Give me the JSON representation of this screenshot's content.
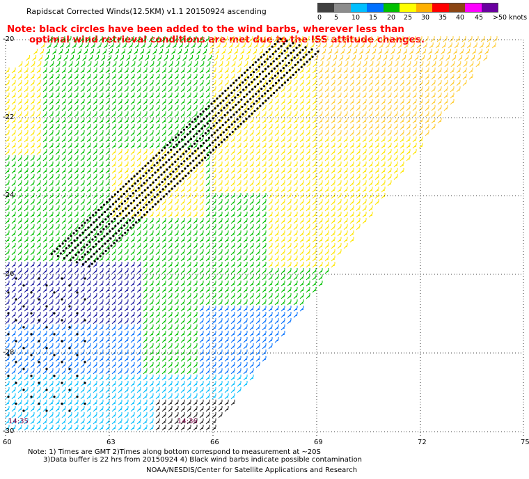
{
  "title": "Rapidscat Corrected Winds(12.5KM) v1.1 20150924 ascending",
  "note": {
    "line1": "Note: black circles have been added to the wind barbs, wherever less than",
    "line2": "optimal wind retrieval conditions are met due to the ISS attitude changes."
  },
  "legend": {
    "labels": [
      "0",
      "5",
      "10",
      "15",
      "20",
      "25",
      "30",
      "35",
      "40",
      "45",
      ">50 knots"
    ],
    "colors": [
      "#404040",
      "#8c8c8c",
      "#00bfff",
      "#0070ff",
      "#00c000",
      "#ffff00",
      "#ffb000",
      "#ff0000",
      "#8b4513",
      "#ff00ff",
      "#6a00a0"
    ]
  },
  "axes": {
    "latitudes": [
      "-20",
      "-22",
      "-24",
      "-26",
      "-28",
      "-30"
    ],
    "longitudes": [
      "60",
      "63",
      "66",
      "69",
      "72",
      "75"
    ]
  },
  "times": [
    "14:35",
    "14:36"
  ],
  "footer": {
    "line1": "Note: 1) Times are GMT 2)Times along bottom correspond to measurement at ~20S",
    "line2": "3)Data buffer is 22 hrs from 20150924 4) Black wind barbs indicate possible contamination",
    "line3": "NOAA/NESDIS/Center for Satellite Applications and Research"
  },
  "colors": {
    "note_text": "#ff0000",
    "time_label": "#7a0045",
    "grid": "#000000"
  }
}
